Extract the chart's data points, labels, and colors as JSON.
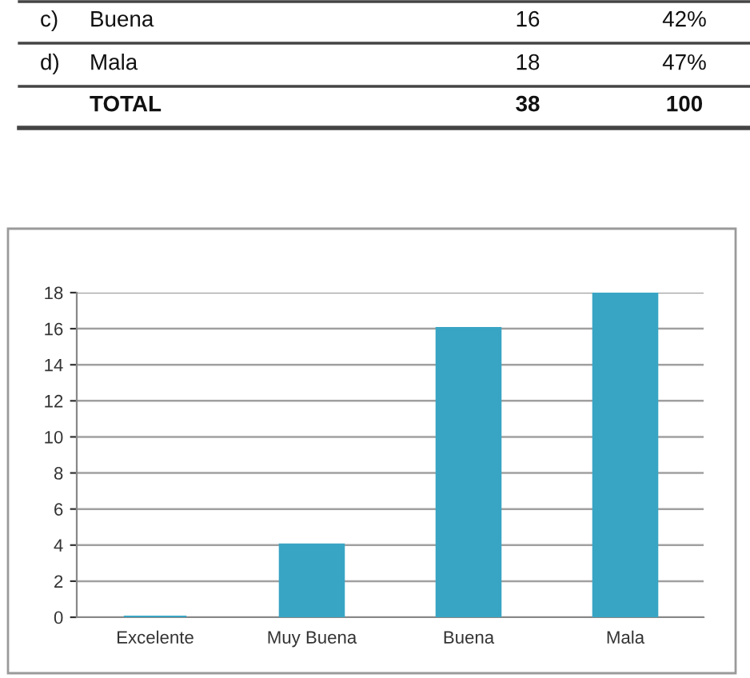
{
  "chart_data": [
    {
      "type": "other",
      "annotations": [
        "c)",
        "Buena",
        "16",
        "42%",
        "d)",
        "Mala",
        "18",
        "47%",
        "TOTAL",
        "38",
        "100"
      ]
    },
    {
      "type": "bar",
      "categories": [
        "Excelente",
        "Muy Buena",
        "Buena",
        "Mala"
      ],
      "values": [
        0,
        4,
        16,
        18
      ],
      "color": "#39a5c4",
      "ylim": [
        0,
        18
      ],
      "yticks": [
        0,
        2,
        4,
        6,
        8,
        10,
        12,
        14,
        16,
        18
      ],
      "grid": "y"
    }
  ]
}
